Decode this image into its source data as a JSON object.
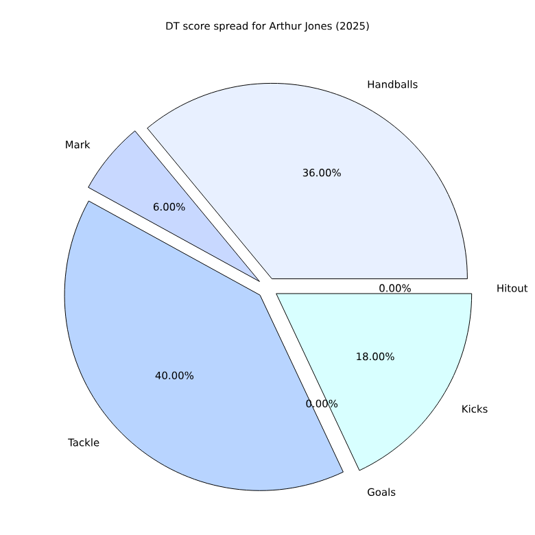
{
  "chart_data": {
    "type": "pie",
    "title": "DT score spread for Arthur Jones (2025)",
    "categories": [
      "Handballs",
      "Mark",
      "Tackle",
      "Goals",
      "Kicks",
      "Hitout"
    ],
    "values": [
      36,
      6,
      40,
      0,
      18,
      0
    ],
    "colors": [
      "#e8f0ff",
      "#c8d8ff",
      "#b8d4ff",
      "#a8c8ff",
      "#d8ffff",
      "#e0e0e0"
    ],
    "value_labels": [
      "36.00%",
      "6.00%",
      "40.00%",
      "0.00%",
      "18.00%",
      "0.00%"
    ]
  }
}
